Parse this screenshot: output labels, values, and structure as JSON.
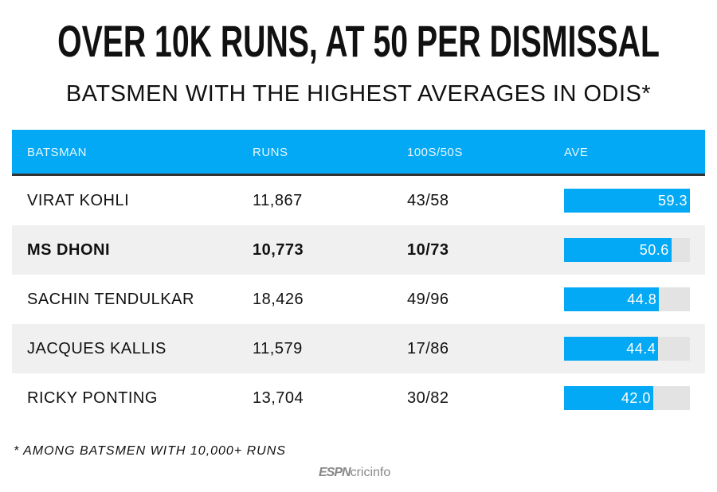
{
  "chart_data": {
    "type": "table",
    "title": "OVER 10K RUNS, AT 50 PER DISMISSAL",
    "subtitle": "BATSMEN WITH THE HIGHEST AVERAGES IN ODIS*",
    "columns": [
      "BATSMAN",
      "RUNS",
      "100S/50S",
      "AVE"
    ],
    "rows": [
      {
        "batsman": "VIRAT KOHLI",
        "runs": "11,867",
        "hf": "43/58",
        "ave": 59.3,
        "ave_label": "59.3",
        "bold": false
      },
      {
        "batsman": "MS DHONI",
        "runs": "10,773",
        "hf": "10/73",
        "ave": 50.6,
        "ave_label": "50.6",
        "bold": true
      },
      {
        "batsman": "SACHIN TENDULKAR",
        "runs": "18,426",
        "hf": "49/96",
        "ave": 44.8,
        "ave_label": "44.8",
        "bold": false
      },
      {
        "batsman": "JACQUES KALLIS",
        "runs": "11,579",
        "hf": "17/86",
        "ave": 44.4,
        "ave_label": "44.4",
        "bold": false
      },
      {
        "batsman": "RICKY PONTING",
        "runs": "13,704",
        "hf": "30/82",
        "ave": 42.0,
        "ave_label": "42.0",
        "bold": false
      }
    ],
    "ave_max": 59.3,
    "footnote": "* AMONG BATSMEN WITH 10,000+ RUNS",
    "source": "ESPNcricinfo",
    "colors": {
      "header": "#03a9f4",
      "bar": "#03a9f4",
      "track": "#e3e3e3"
    }
  }
}
